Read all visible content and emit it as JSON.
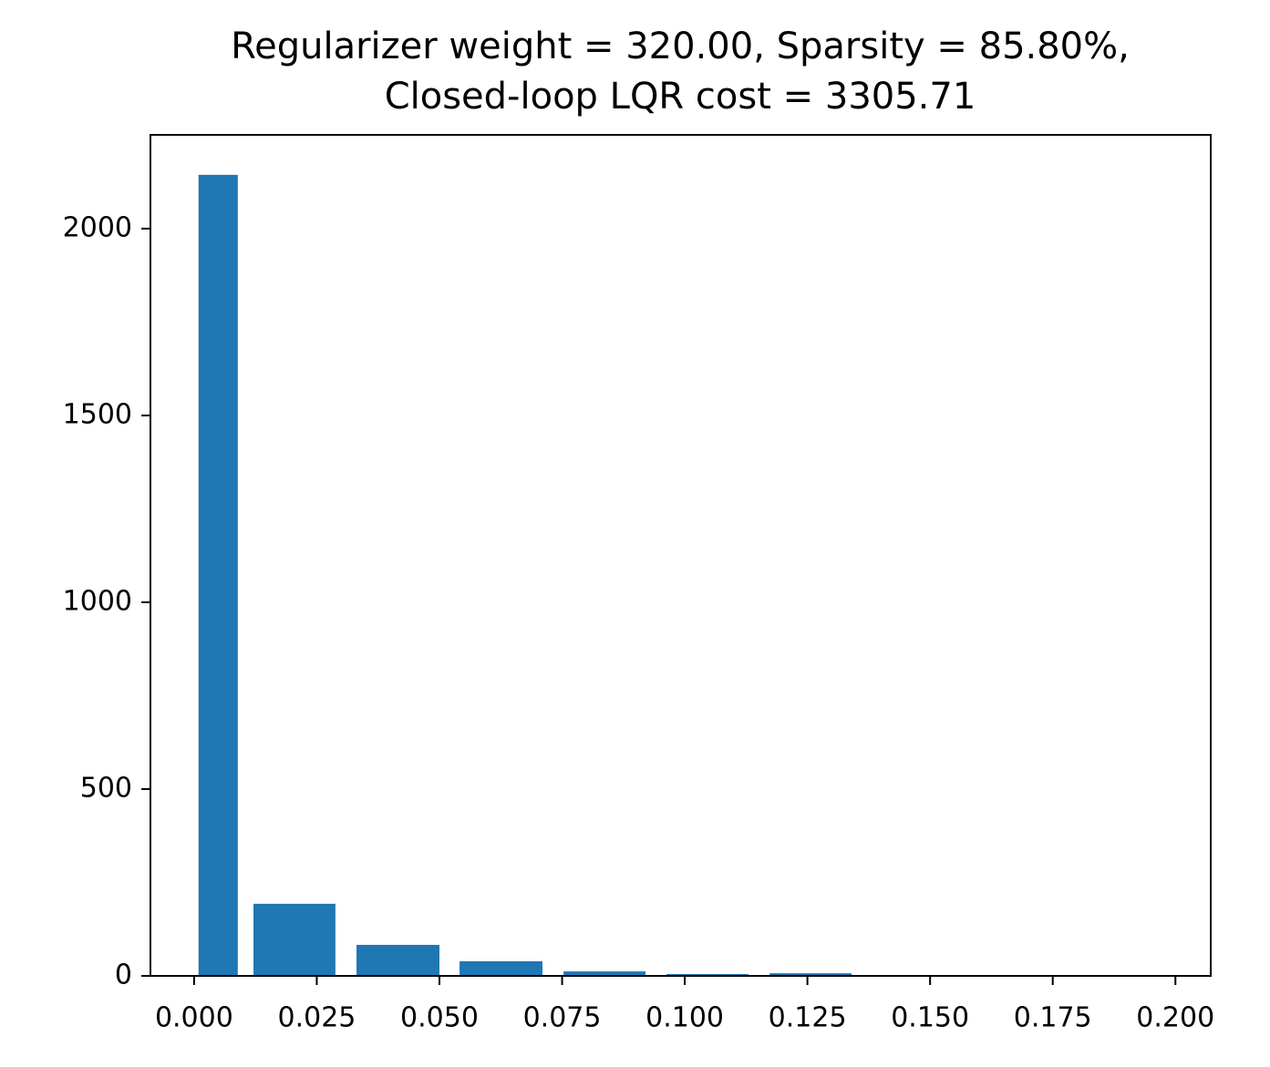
{
  "chart_data": {
    "type": "bar",
    "title": [
      "Regularizer weight = 320.00, Sparsity = 85.80%,",
      "Closed-loop LQR cost = 3305.71"
    ],
    "x_left": [
      0.0009,
      0.0121,
      0.0331,
      0.0541,
      0.0753,
      0.0963,
      0.1173,
      0.1385
    ],
    "x_right": [
      0.0089,
      0.0288,
      0.05,
      0.071,
      0.092,
      0.113,
      0.134,
      0.1552
    ],
    "values": [
      2144,
      193,
      83,
      39,
      12,
      5,
      7,
      2
    ],
    "color": "#1f77b4",
    "xlim": [
      -0.0089,
      0.2072
    ],
    "ylim": [
      0,
      2251
    ],
    "xticks": [
      {
        "value": 0,
        "label": "0.000"
      },
      {
        "value": 0.025,
        "label": "0.025"
      },
      {
        "value": 0.05,
        "label": "0.050"
      },
      {
        "value": 0.075,
        "label": "0.075"
      },
      {
        "value": 0.1,
        "label": "0.100"
      },
      {
        "value": 0.125,
        "label": "0.125"
      },
      {
        "value": 0.15,
        "label": "0.150"
      },
      {
        "value": 0.175,
        "label": "0.175"
      },
      {
        "value": 0.2,
        "label": "0.200"
      }
    ],
    "yticks": [
      0,
      500,
      1000,
      1500,
      2000
    ],
    "grid": false
  }
}
